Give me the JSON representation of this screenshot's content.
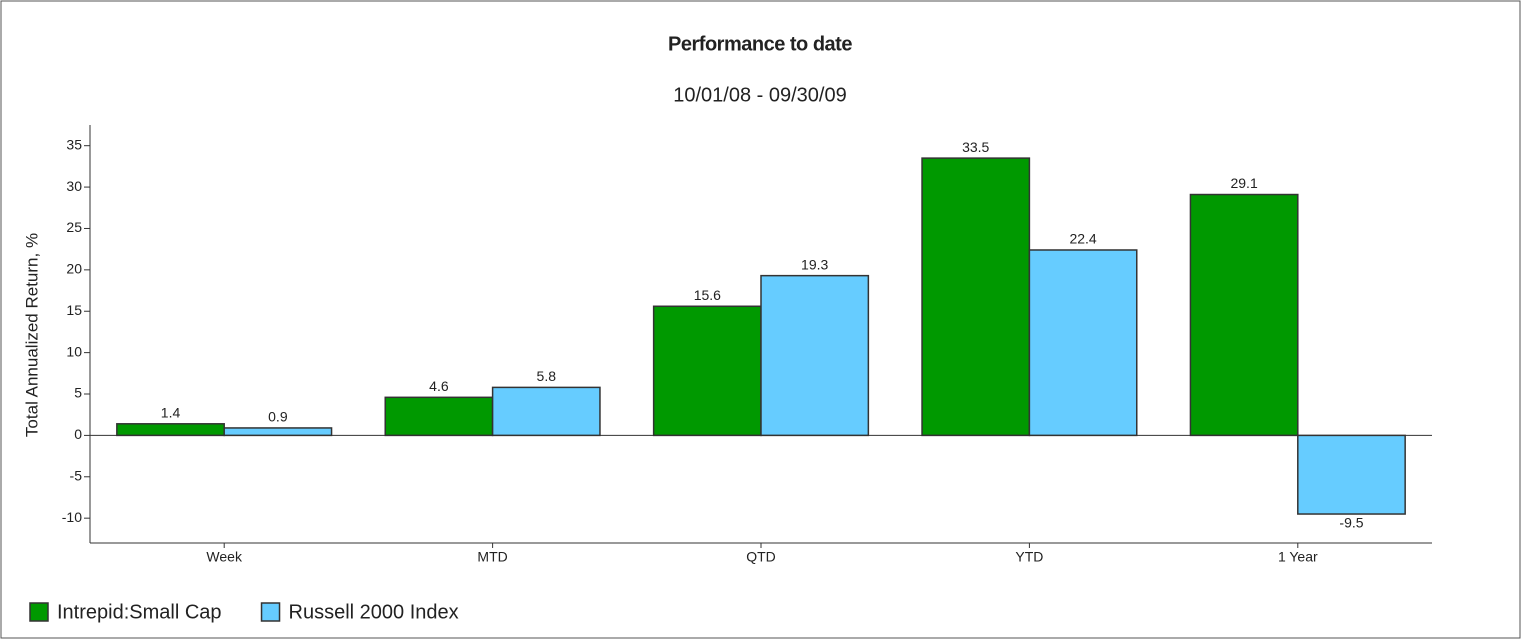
{
  "chart_data": {
    "type": "bar",
    "title": "Performance to date",
    "subtitle": "10/01/08 - 09/30/09",
    "y_label": "Total Annualized Return, %",
    "categories": [
      "Week",
      "MTD",
      "QTD",
      "YTD",
      "1 Year"
    ],
    "series": [
      {
        "name": "Intrepid:Small Cap",
        "color": "#009900",
        "values": [
          1.4,
          4.6,
          15.6,
          33.5,
          29.1
        ]
      },
      {
        "name": "Russell 2000 Index",
        "color": "#66ccff",
        "values": [
          0.9,
          5.8,
          19.3,
          22.4,
          -9.5
        ]
      }
    ],
    "ylim": [
      -13,
      37.5
    ],
    "yticks": [
      -10,
      -5,
      0,
      5,
      10,
      15,
      20,
      25,
      30,
      35
    ],
    "legend": "bottom-left"
  }
}
